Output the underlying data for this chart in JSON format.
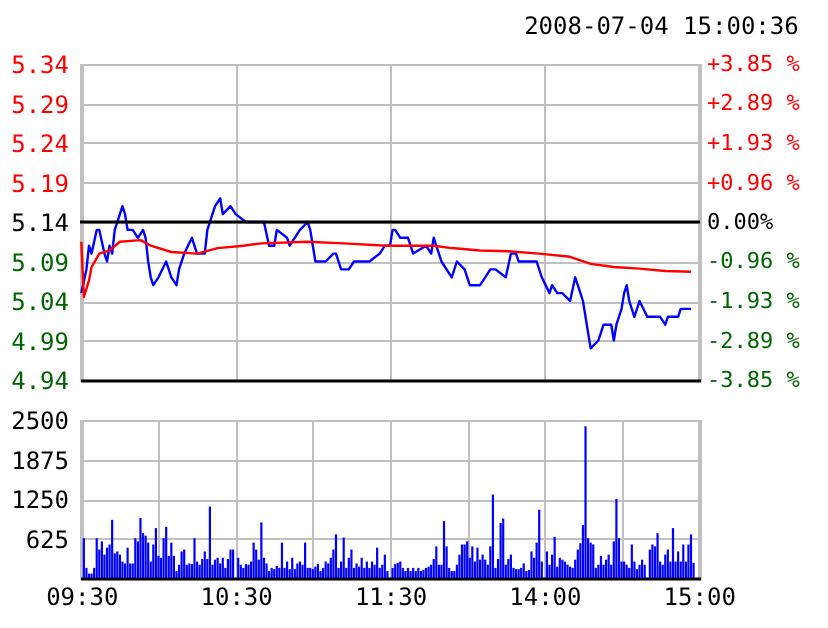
{
  "chart_data": [
    {
      "type": "line",
      "title": "2008-07-04 15:00:36",
      "categories": [
        null,
        null,
        null,
        null,
        null,
        null,
        null,
        null,
        null,
        null,
        null,
        null,
        null,
        null,
        null,
        null,
        null,
        null,
        null,
        null,
        null,
        null,
        null,
        null,
        null,
        null,
        null,
        null,
        null,
        null,
        null,
        null,
        null,
        null,
        null,
        null,
        null,
        null,
        null,
        null,
        null,
        null,
        null,
        null,
        null,
        null,
        null,
        null,
        null,
        null,
        null,
        null,
        null,
        null,
        null,
        null,
        null,
        null,
        null,
        null,
        null,
        null,
        null,
        null,
        null,
        null,
        null,
        null,
        null,
        null,
        null,
        null,
        null,
        null,
        null,
        null,
        null,
        null,
        null,
        null,
        null,
        null,
        null,
        null,
        null,
        null,
        null,
        null,
        null,
        null,
        null,
        null,
        null,
        null,
        null,
        null,
        null,
        null,
        null,
        null,
        null,
        null,
        null,
        null,
        null,
        null,
        null,
        null,
        null,
        null,
        null,
        null,
        null,
        null,
        null,
        null,
        null,
        null,
        null,
        null,
        null,
        null,
        null,
        null,
        null,
        null,
        null,
        null,
        null,
        null,
        null,
        null,
        null,
        null,
        null,
        null,
        null,
        null,
        null,
        null,
        null,
        null,
        null,
        null,
        null,
        null,
        null,
        null,
        null,
        null,
        null,
        null,
        null,
        null,
        null,
        null,
        null,
        null,
        null,
        null,
        null,
        null,
        null,
        null,
        null,
        null,
        null,
        null,
        null,
        null,
        null,
        null,
        null,
        null,
        null,
        null,
        null,
        null,
        null,
        null,
        null,
        null,
        null,
        null,
        null,
        null,
        null,
        null,
        null,
        null,
        null,
        null,
        null,
        null,
        null,
        null,
        null,
        null,
        null,
        null,
        null,
        null,
        null,
        null,
        null,
        null,
        null,
        null,
        null,
        null,
        null,
        null,
        null,
        null,
        null,
        null,
        null,
        null,
        null,
        null,
        null,
        null,
        null,
        null,
        null,
        null,
        null,
        null,
        null,
        null,
        null,
        null,
        null,
        null,
        null,
        null,
        null,
        null,
        null,
        null,
        null
      ],
      "series": [
        {
          "color": "#0000ff",
          "values": [
            5.05,
            null,
            5.08,
            5.11,
            5.1,
            null,
            5.13,
            5.13,
            null,
            5.1,
            5.09,
            5.11,
            5.1,
            5.13,
            null,
            5.15,
            5.16,
            5.15,
            5.13,
            null,
            5.13,
            null,
            5.12,
            null,
            5.13,
            5.12,
            5.09,
            5.07,
            5.06,
            null,
            5.07,
            null,
            null,
            5.09,
            null,
            5.07,
            null,
            5.06,
            5.08,
            null,
            5.1,
            null,
            null,
            5.12,
            null,
            5.1,
            null,
            null,
            5.1,
            5.13,
            null,
            null,
            5.16,
            null,
            5.17,
            5.15,
            null,
            null,
            5.16,
            null,
            5.15,
            null,
            null,
            null,
            5.14,
            null,
            null,
            5.14,
            null,
            null,
            null,
            5.14,
            null,
            5.11,
            null,
            5.11,
            5.13,
            null,
            null,
            null,
            5.12,
            5.11,
            null,
            null,
            null,
            5.13,
            null,
            null,
            5.14,
            5.13,
            5.11,
            5.09,
            null,
            null,
            null,
            5.09,
            null,
            null,
            5.1,
            5.1,
            null,
            5.08,
            null,
            null,
            5.08,
            null,
            5.09,
            null,
            null,
            null,
            5.09,
            null,
            5.09,
            null,
            null,
            null,
            5.1,
            null,
            5.11,
            null,
            5.11,
            5.13,
            5.13,
            null,
            5.12,
            null,
            null,
            5.12,
            null,
            5.1,
            null,
            null,
            null,
            null,
            5.11,
            null,
            5.1,
            5.12,
            null,
            null,
            5.09,
            null,
            null,
            null,
            5.07,
            null,
            5.09,
            null,
            null,
            5.08,
            null,
            5.06,
            null,
            null,
            null,
            5.06,
            null,
            5.07,
            null,
            5.08,
            null,
            5.08,
            null,
            null,
            null,
            5.07,
            null,
            5.1,
            null,
            5.1,
            5.09,
            null,
            5.09,
            null,
            null,
            null,
            5.09,
            5.09,
            null,
            5.07,
            null,
            null,
            5.05,
            5.06,
            null,
            5.05,
            null,
            5.05,
            null,
            null,
            5.04,
            null,
            5.07,
            5.06,
            null,
            5.04,
            null,
            5.0,
            4.98,
            null,
            null,
            4.99,
            null,
            5.01,
            null,
            null,
            5.01,
            4.99,
            5.01,
            null,
            5.03,
            5.05,
            5.06,
            5.04,
            null,
            5.02,
            null,
            5.04,
            null,
            null,
            5.02,
            null,
            null,
            null,
            null,
            5.02,
            null,
            5.01,
            5.02,
            null,
            null,
            5.02,
            5.02,
            5.03,
            null,
            null,
            null,
            5.03,
            null,
            null,
            null
          ]
        },
        {
          "color": "#ff0000",
          "values": [
            5.115,
            5.045,
            null,
            5.066,
            5.083,
            null,
            null,
            5.1,
            null,
            null,
            null,
            5.104,
            null,
            null,
            null,
            5.115,
            null,
            null,
            null,
            null,
            null,
            null,
            null,
            5.117,
            null,
            null,
            null,
            5.11,
            null,
            null,
            null,
            null,
            null,
            null,
            null,
            5.102,
            null,
            null,
            null,
            null,
            null,
            null,
            null,
            null,
            null,
            5.1,
            null,
            null,
            null,
            null,
            null,
            null,
            null,
            5.107,
            null,
            null,
            null,
            null,
            null,
            null,
            null,
            null,
            null,
            5.11,
            null,
            null,
            null,
            null,
            null,
            null,
            5.113,
            null,
            null,
            null,
            null,
            null,
            null,
            null,
            null,
            null,
            null,
            null,
            null,
            null,
            null,
            null,
            null,
            null,
            5.115,
            null,
            null,
            null,
            null,
            null,
            null,
            null,
            null,
            null,
            null,
            null,
            null,
            null,
            5.113,
            null,
            null,
            null,
            null,
            null,
            null,
            null,
            null,
            null,
            null,
            null,
            null,
            null,
            null,
            null,
            null,
            5.11,
            null,
            null,
            null,
            null,
            null,
            null,
            null,
            null,
            null,
            null,
            null,
            null,
            null,
            null,
            null,
            null,
            null,
            5.11,
            null,
            null,
            null,
            null,
            null,
            null,
            5.107,
            null,
            null,
            null,
            null,
            null,
            null,
            null,
            null,
            null,
            null,
            5.104,
            null,
            null,
            null,
            null,
            null,
            null,
            null,
            null,
            null,
            null,
            5.103,
            null,
            null,
            null,
            null,
            null,
            null,
            null,
            null,
            null,
            null,
            null,
            5.1,
            null,
            null,
            null,
            null,
            null,
            null,
            null,
            null,
            null,
            null,
            null,
            5.096,
            null,
            null,
            null,
            null,
            null,
            null,
            null,
            5.087,
            null,
            null,
            null,
            null,
            null,
            null,
            null,
            null,
            5.083,
            null,
            null,
            null,
            null,
            null,
            null,
            null,
            null,
            null,
            5.081,
            null,
            null,
            null,
            null,
            null,
            null,
            null,
            null,
            null,
            5.078,
            null,
            null,
            null,
            null,
            null,
            null,
            null,
            null,
            null,
            5.077,
            null,
            null,
            null
          ]
        }
      ],
      "ylim": [
        4.94,
        5.34
      ],
      "yticks": [
        4.94,
        4.99,
        5.04,
        5.09,
        5.14,
        5.19,
        5.24,
        5.29,
        5.34
      ],
      "y2lim": [
        -3.85,
        3.85
      ],
      "y2ticks": [
        {
          "value": -3.85,
          "label": "-3.85 %"
        },
        {
          "value": -2.89,
          "label": "-2.89 %"
        },
        {
          "value": -1.93,
          "label": "-1.93 %"
        },
        {
          "value": -0.96,
          "label": "-0.96 %"
        },
        {
          "value": 0,
          "label": "0.00%"
        },
        {
          "value": 0.96,
          "label": "+0.96 %"
        },
        {
          "value": 1.93,
          "label": "+1.93 %"
        },
        {
          "value": 2.89,
          "label": "+2.89 %"
        },
        {
          "value": 3.85,
          "label": "+3.85 %"
        }
      ],
      "ref_lines": [
        {
          "axis": "y",
          "value": 5.14,
          "color": "#000000"
        }
      ],
      "grid": true,
      "tick_labels": "y"
    },
    {
      "type": "bar",
      "categories": [
        "09:30",
        null,
        null,
        null,
        null,
        null,
        null,
        null,
        null,
        null,
        null,
        null,
        null,
        null,
        null,
        null,
        null,
        null,
        null,
        null,
        null,
        null,
        null,
        null,
        null,
        null,
        null,
        null,
        null,
        null,
        null,
        null,
        null,
        null,
        null,
        null,
        null,
        null,
        null,
        null,
        null,
        null,
        null,
        null,
        null,
        null,
        null,
        null,
        null,
        null,
        null,
        null,
        null,
        null,
        null,
        null,
        null,
        null,
        null,
        null,
        "10:30",
        null,
        null,
        null,
        null,
        null,
        null,
        null,
        null,
        null,
        null,
        null,
        null,
        null,
        null,
        null,
        null,
        null,
        null,
        null,
        null,
        null,
        null,
        null,
        null,
        null,
        null,
        null,
        null,
        null,
        null,
        null,
        null,
        null,
        null,
        null,
        null,
        null,
        null,
        null,
        null,
        null,
        null,
        null,
        null,
        null,
        null,
        null,
        null,
        null,
        null,
        null,
        null,
        null,
        null,
        null,
        null,
        null,
        null,
        null,
        "11:30",
        null,
        null,
        null,
        null,
        null,
        null,
        null,
        null,
        null,
        null,
        null,
        null,
        null,
        null,
        null,
        null,
        null,
        null,
        null,
        null,
        null,
        null,
        null,
        null,
        null,
        null,
        null,
        null,
        null,
        null,
        null,
        null,
        null,
        null,
        null,
        null,
        null,
        null,
        null,
        null,
        null,
        null,
        null,
        null,
        null,
        null,
        null,
        null,
        null,
        null,
        null,
        null,
        null,
        null,
        null,
        null,
        null,
        null,
        null,
        "14:00",
        null,
        null,
        null,
        null,
        null,
        null,
        null,
        null,
        null,
        null,
        null,
        null,
        null,
        null,
        null,
        null,
        null,
        null,
        null,
        null,
        null,
        null,
        null,
        null,
        null,
        null,
        null,
        null,
        null,
        null,
        null,
        null,
        null,
        null,
        null,
        null,
        null,
        null,
        null,
        null,
        null,
        null,
        null,
        null,
        null,
        null,
        null,
        null,
        null,
        null,
        null,
        null,
        null,
        null,
        null,
        null,
        null,
        null,
        null,
        "15:00"
      ],
      "series": [
        {
          "color": "#0000ff",
          "values": [
            null,
            630,
            160,
            70,
            70,
            160,
            630,
            450,
            580,
            370,
            480,
            530,
            920,
            390,
            420,
            370,
            260,
            230,
            480,
            230,
            230,
            630,
            580,
            950,
            710,
            670,
            560,
            260,
            530,
            790,
            350,
            320,
            630,
            810,
            350,
            560,
            350,
            110,
            210,
            420,
            450,
            210,
            230,
            220,
            630,
            260,
            210,
            300,
            420,
            300,
            1130,
            210,
            290,
            320,
            230,
            320,
            160,
            300,
            450,
            450,
            null,
            320,
            210,
            160,
            220,
            210,
            260,
            560,
            450,
            290,
            880,
            320,
            230,
            110,
            160,
            140,
            190,
            160,
            560,
            160,
            260,
            140,
            320,
            140,
            230,
            260,
            210,
            560,
            160,
            160,
            140,
            180,
            220,
            110,
            160,
            260,
            230,
            320,
            450,
            690,
            160,
            260,
            640,
            160,
            320,
            450,
            160,
            230,
            180,
            320,
            160,
            260,
            160,
            260,
            210,
            480,
            160,
            210,
            370,
            110,
            null,
            160,
            220,
            240,
            260,
            160,
            110,
            160,
            110,
            160,
            110,
            160,
            110,
            130,
            160,
            180,
            210,
            300,
            500,
            210,
            210,
            900,
            500,
            160,
            110,
            110,
            210,
            370,
            530,
            530,
            580,
            320,
            500,
            260,
            480,
            290,
            370,
            290,
            210,
            500,
            1320,
            160,
            300,
            870,
            940,
            210,
            300,
            370,
            160,
            140,
            140,
            160,
            230,
            110,
            130,
            420,
            320,
            560,
            1080,
            260,
            null,
            420,
            210,
            370,
            650,
            180,
            320,
            290,
            260,
            210,
            180,
            160,
            290,
            450,
            550,
            840,
            2400,
            630,
            560,
            530,
            160,
            210,
            350,
            210,
            290,
            370,
            210,
            580,
            1250,
            630,
            260,
            260,
            210,
            160,
            530,
            260,
            140,
            210,
            290,
            210,
            null,
            450,
            530,
            500,
            710,
            260,
            210,
            370,
            450,
            260,
            790,
            260,
            420,
            260,
            530,
            260,
            530,
            690,
            240,
            null,
            null
          ]
        }
      ],
      "ylim": [
        0,
        2500
      ],
      "yticks": [
        625,
        1250,
        1875,
        2500
      ],
      "grid": true
    }
  ]
}
